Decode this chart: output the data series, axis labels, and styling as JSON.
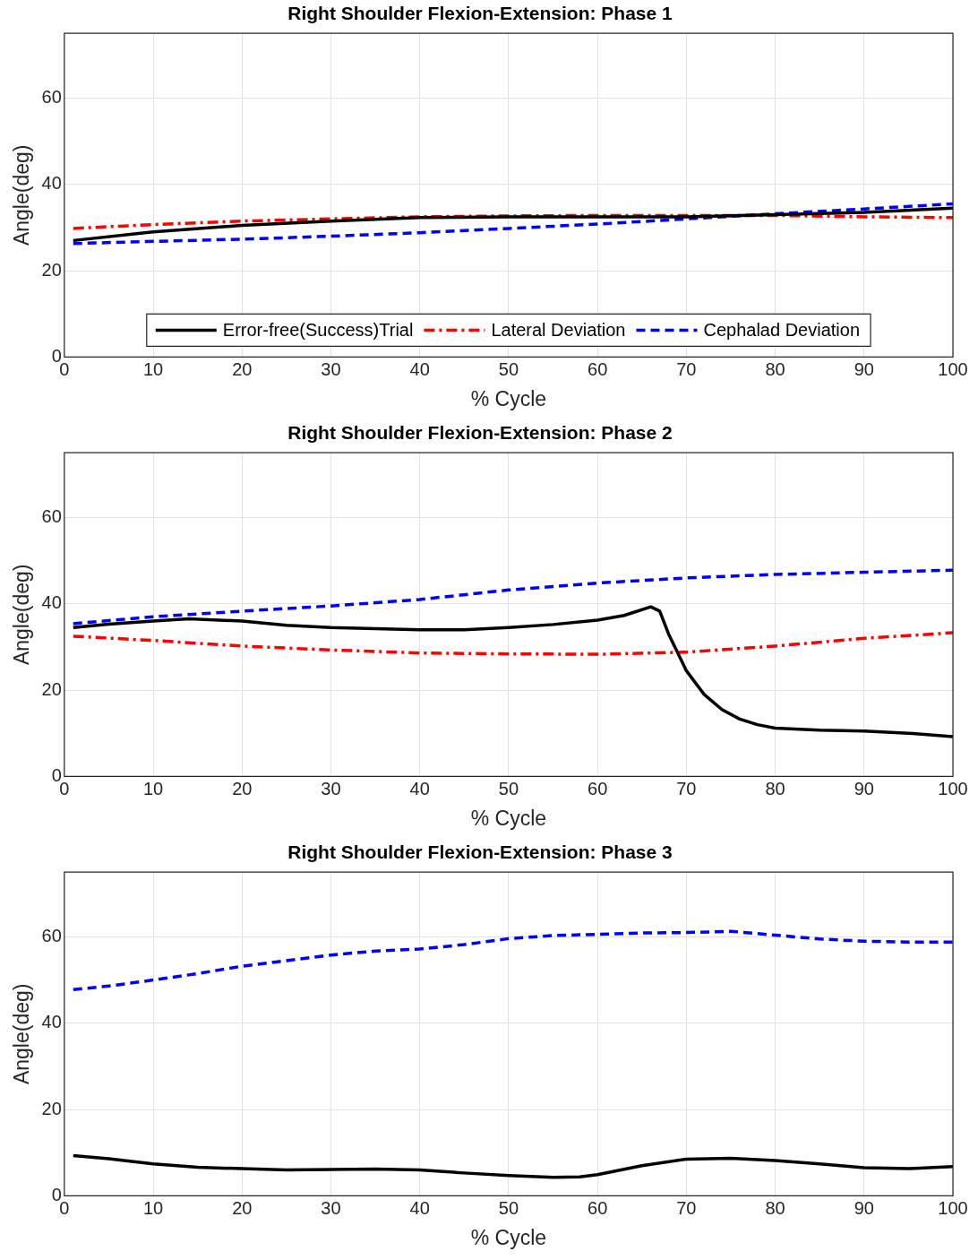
{
  "chart_data": [
    {
      "type": "line",
      "title": "Right Shoulder Flexion-Extension: Phase 1",
      "xlabel": "% Cycle",
      "ylabel": "Angle(deg)",
      "xlim": [
        0,
        100
      ],
      "xticks": [
        0,
        10,
        20,
        30,
        40,
        50,
        60,
        70,
        80,
        90,
        100
      ],
      "ylim": [
        0,
        75
      ],
      "yticks": [
        0,
        20,
        40,
        60
      ],
      "grid": true,
      "legend": "bottom",
      "marker": "none",
      "series": [
        {
          "name": "Error-free(Success)Trial",
          "color": "#000000",
          "line_style": "solid",
          "x": [
            1,
            10,
            20,
            30,
            40,
            50,
            60,
            70,
            80,
            90,
            100
          ],
          "values": [
            27,
            29,
            30.5,
            31.5,
            32.3,
            32.5,
            32.5,
            32.5,
            33,
            33.5,
            34.5
          ]
        },
        {
          "name": "Lateral Deviation",
          "color": "#ff0000",
          "line_style": "dashdot",
          "x": [
            1,
            10,
            20,
            30,
            40,
            50,
            60,
            70,
            80,
            90,
            100
          ],
          "values": [
            29.8,
            30.7,
            31.5,
            32,
            32.5,
            32.7,
            32.8,
            32.8,
            32.8,
            32.5,
            32.3
          ]
        },
        {
          "name": "Cephalad Deviation",
          "color": "#0000ff",
          "line_style": "dashed",
          "x": [
            1,
            10,
            20,
            30,
            40,
            50,
            60,
            70,
            80,
            90,
            100
          ],
          "values": [
            26.3,
            26.8,
            27.3,
            28,
            28.8,
            29.8,
            30.8,
            32,
            33.2,
            34.3,
            35.5
          ]
        }
      ]
    },
    {
      "type": "line",
      "title": "Right Shoulder Flexion-Extension: Phase 2",
      "xlabel": "% Cycle",
      "ylabel": "Angle(deg)",
      "xlim": [
        0,
        100
      ],
      "xticks": [
        0,
        10,
        20,
        30,
        40,
        50,
        60,
        70,
        80,
        90,
        100
      ],
      "ylim": [
        0,
        75
      ],
      "yticks": [
        0,
        20,
        40,
        60
      ],
      "grid": true,
      "marker": "none",
      "series": [
        {
          "color": "#000000",
          "line_style": "solid",
          "x": [
            1,
            5,
            10,
            14,
            20,
            25,
            30,
            40,
            45,
            50,
            55,
            60,
            63,
            66,
            67,
            68,
            70,
            72,
            74,
            76,
            78,
            80,
            85,
            90,
            95,
            100
          ],
          "values": [
            34.5,
            35.3,
            36,
            36.5,
            36,
            35,
            34.5,
            34,
            34,
            34.5,
            35.2,
            36.2,
            37.3,
            39.3,
            38.3,
            33,
            24.5,
            19,
            15.5,
            13.3,
            12,
            11.2,
            10.7,
            10.5,
            10,
            9.2
          ]
        },
        {
          "color": "#ff0000",
          "line_style": "dashdot",
          "x": [
            1,
            10,
            20,
            30,
            40,
            50,
            60,
            70,
            80,
            90,
            100
          ],
          "values": [
            32.5,
            31.5,
            30.2,
            29.3,
            28.6,
            28.4,
            28.3,
            28.8,
            30.2,
            32,
            33.3
          ]
        },
        {
          "color": "#0000ff",
          "line_style": "dashed",
          "x": [
            1,
            10,
            20,
            30,
            40,
            50,
            60,
            70,
            80,
            90,
            100
          ],
          "values": [
            35.4,
            37,
            38.3,
            39.5,
            41,
            43.2,
            44.8,
            46,
            46.8,
            47.3,
            47.8
          ]
        }
      ]
    },
    {
      "type": "line",
      "title": "Right Shoulder Flexion-Extension: Phase 3",
      "xlabel": "% Cycle",
      "ylabel": "Angle(deg)",
      "xlim": [
        0,
        100
      ],
      "xticks": [
        0,
        10,
        20,
        30,
        40,
        50,
        60,
        70,
        80,
        90,
        100
      ],
      "ylim": [
        0,
        75
      ],
      "yticks": [
        0,
        20,
        40,
        60
      ],
      "grid": true,
      "marker": "none",
      "series": [
        {
          "color": "#000000",
          "line_style": "solid",
          "x": [
            1,
            5,
            10,
            15,
            20,
            25,
            30,
            35,
            40,
            45,
            50,
            55,
            58,
            60,
            65,
            70,
            75,
            80,
            85,
            90,
            95,
            100
          ],
          "values": [
            9.3,
            8.6,
            7.4,
            6.6,
            6.3,
            6,
            6.1,
            6.2,
            6,
            5.3,
            4.7,
            4.3,
            4.4,
            4.9,
            7,
            8.5,
            8.7,
            8.2,
            7.4,
            6.5,
            6.3,
            6.8
          ]
        },
        {
          "color": "#0000ff",
          "line_style": "dashed",
          "x": [
            1,
            5,
            10,
            15,
            20,
            25,
            30,
            35,
            40,
            45,
            50,
            55,
            60,
            65,
            70,
            75,
            80,
            85,
            90,
            95,
            100
          ],
          "values": [
            47.8,
            48.6,
            50,
            51.5,
            53.2,
            54.5,
            55.8,
            56.7,
            57.2,
            58.2,
            59.6,
            60.3,
            60.6,
            60.9,
            61,
            61.3,
            60.4,
            59.5,
            59,
            58.8,
            58.8
          ]
        }
      ]
    }
  ]
}
